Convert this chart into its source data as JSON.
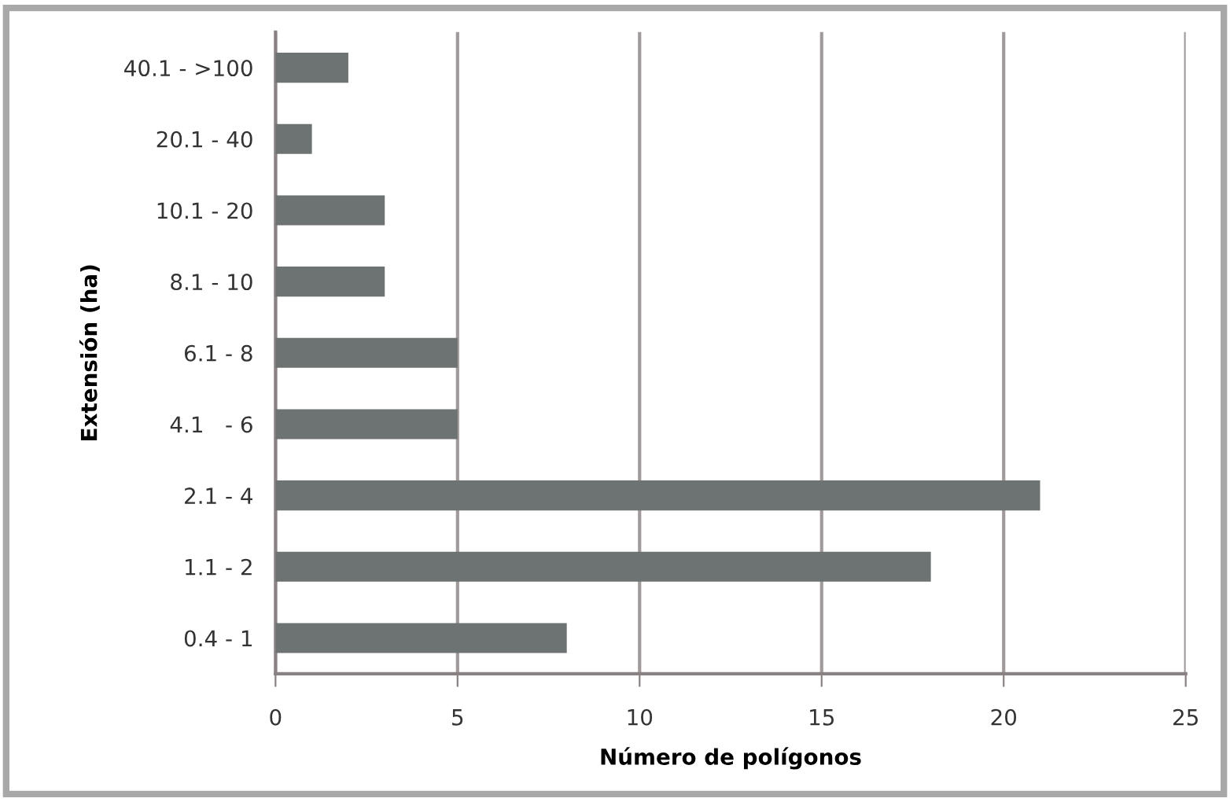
{
  "chart_data": {
    "type": "bar",
    "orientation": "horizontal",
    "xlabel": "Número de polígonos",
    "ylabel": "Extensión (ha)",
    "categories": [
      "40.1 - >100",
      "20.1 - 40",
      "10.1 - 20",
      "8.1 - 10",
      "6.1 - 8",
      "4.1   - 6",
      "2.1 - 4",
      "1.1 - 2",
      "0.4 - 1"
    ],
    "values": [
      2,
      1,
      3,
      3,
      5,
      5,
      21,
      18,
      8
    ],
    "color": "#6d7373",
    "xlim": [
      0,
      25
    ],
    "xticks": [
      0,
      5,
      10,
      15,
      20,
      25
    ],
    "grid": "x",
    "legend": false
  }
}
